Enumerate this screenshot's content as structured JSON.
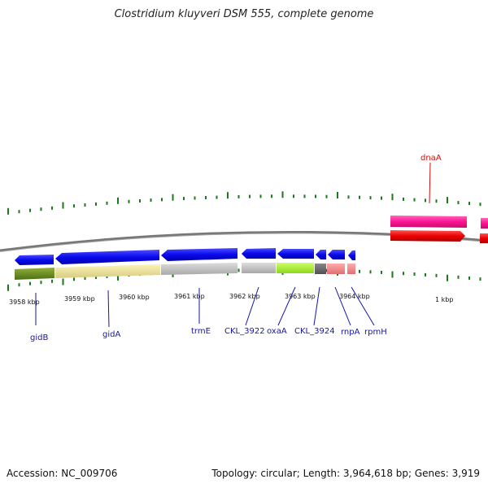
{
  "title": "Clostridium kluyveri DSM 555, complete genome",
  "footer": {
    "accession": "Accession: NC_009706",
    "topology": "Topology: circular; Length: 3,964,618 bp; Genes: 3,919"
  },
  "scale_labels": [
    "3958 kbp",
    "3959 kbp",
    "3960 kbp",
    "3961 kbp",
    "3962 kbp",
    "3963 kbp",
    "3964 kbp",
    "1 kbp"
  ],
  "gene_labels": [
    {
      "text": "gidB",
      "color": "#1515aa"
    },
    {
      "text": "gidA",
      "color": "#1515aa"
    },
    {
      "text": "trmE",
      "color": "#1515aa"
    },
    {
      "text": "CKL_3922",
      "color": "#1515aa"
    },
    {
      "text": "oxaA",
      "color": "#1515aa"
    },
    {
      "text": "CKL_3924",
      "color": "#1515aa"
    },
    {
      "text": "rnpA",
      "color": "#1515aa"
    },
    {
      "text": "rpmH",
      "color": "#1515aa"
    },
    {
      "text": "dnaA",
      "color": "#cc1111"
    }
  ],
  "colors": {
    "backbone": "#777777",
    "tick": "#1a7a1a",
    "cds": "#0b0bee",
    "dnaA": "#ee0000",
    "dnaA_feature": "#ff1493"
  }
}
